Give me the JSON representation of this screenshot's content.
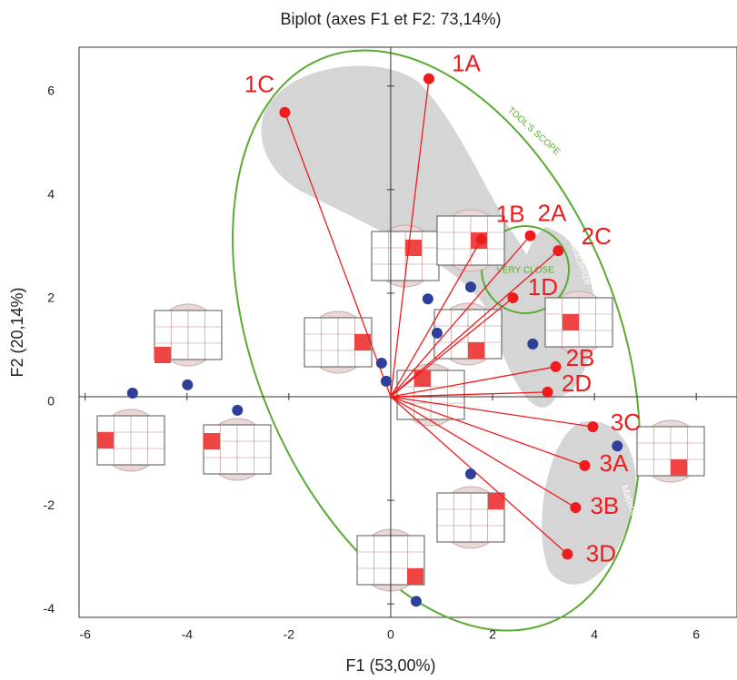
{
  "chart_data": {
    "type": "biplot",
    "title": "Biplot (axes F1 et F2: 73,14%)",
    "x_label": "F1 (53,00%)",
    "y_label": "F2 (20,14%)",
    "xlim": [
      -6.12,
      6.8
    ],
    "ylim": [
      -4.26,
      6.75
    ],
    "xticks": [
      -6,
      -4,
      -2,
      0,
      2,
      4,
      6
    ],
    "yticks": [
      -4,
      -2,
      0,
      2,
      4,
      6
    ],
    "vector_color": "#ee1c1c",
    "observation_color": "#2e3f9a",
    "vectors": {
      "labels": [
        "1A",
        "1C",
        "1B",
        "2A",
        "2C",
        "1D",
        "2B",
        "2D",
        "3C",
        "3A",
        "3B",
        "3D"
      ],
      "x": [
        0.75,
        -2.08,
        1.78,
        2.74,
        3.29,
        2.4,
        3.24,
        3.08,
        3.97,
        3.81,
        3.63,
        3.47
      ],
      "y": [
        6.14,
        5.49,
        3.04,
        3.11,
        2.82,
        1.91,
        0.58,
        0.09,
        -0.58,
        -1.33,
        -2.14,
        -3.04
      ]
    },
    "observations": {
      "x": [
        -5.07,
        -3.99,
        -3.01,
        -0.18,
        -0.09,
        0.73,
        0.91,
        1.57,
        2.79,
        1.57,
        4.45,
        0.5
      ],
      "y": [
        0.07,
        0.23,
        -0.26,
        0.65,
        0.3,
        1.89,
        1.23,
        2.12,
        1.02,
        -1.49,
        -0.95,
        -3.95
      ]
    },
    "annotations": [
      "TOOL'S SCOPE",
      "VERY CLOSE",
      "Theorize",
      "Characterize",
      "Materialize"
    ]
  }
}
